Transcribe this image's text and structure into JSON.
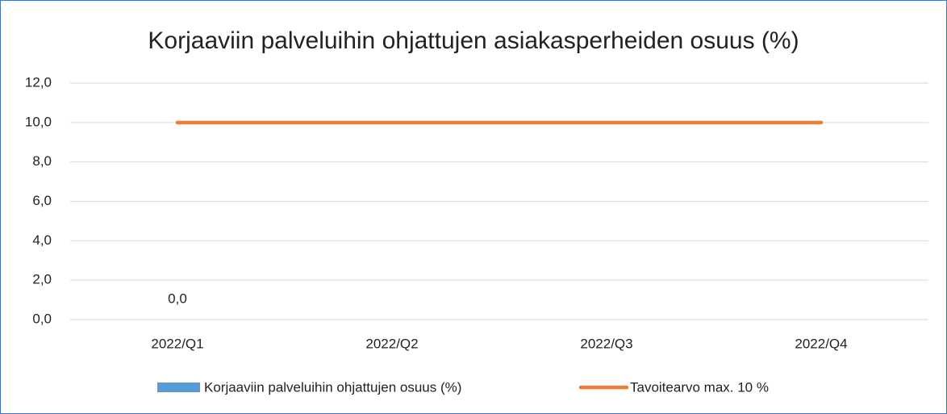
{
  "chart_data": {
    "type": "combo",
    "title": "Korjaaviin palveluihin ohjattujen asiakasperheiden osuus (%)",
    "categories": [
      "2022/Q1",
      "2022/Q2",
      "2022/Q3",
      "2022/Q4"
    ],
    "series": [
      {
        "name": "Korjaaviin palveluihin ohjattujen osuus (%)",
        "type": "bar",
        "color": "#5b9bd5",
        "values": [
          0,
          null,
          null,
          null
        ],
        "value_labels": [
          "0,0",
          null,
          null,
          null
        ]
      },
      {
        "name": "Tavoitearvo max. 10 %",
        "type": "line",
        "color": "#ed7d31",
        "values": [
          10,
          10,
          10,
          10
        ]
      }
    ],
    "ylim": [
      0,
      12
    ],
    "yticks": [
      {
        "value": 0,
        "label": "0,0"
      },
      {
        "value": 2,
        "label": "2,0"
      },
      {
        "value": 4,
        "label": "4,0"
      },
      {
        "value": 6,
        "label": "6,0"
      },
      {
        "value": 8,
        "label": "8,0"
      },
      {
        "value": 10,
        "label": "10,0"
      },
      {
        "value": 12,
        "label": "12,0"
      }
    ],
    "grid": true,
    "legend": "bottom"
  }
}
